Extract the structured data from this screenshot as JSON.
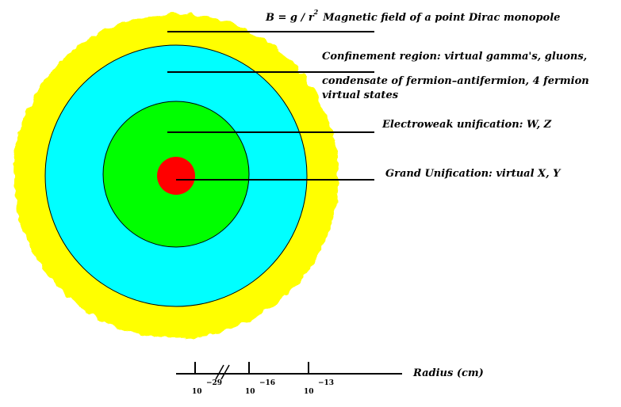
{
  "regions": [
    {
      "key": "outer",
      "color": "#ffff00"
    },
    {
      "key": "confinement",
      "color": "#00ffff"
    },
    {
      "key": "electroweak",
      "color": "#00ff00"
    },
    {
      "key": "grand",
      "color": "#ff0000"
    }
  ],
  "labels": {
    "monopole_formula": "B = g / r",
    "monopole_exponent": "2",
    "monopole_text": "Magnetic field of a point Dirac monopole",
    "confinement_line1": "Confinement region: virtual gamma's, gluons,",
    "confinement_line2": "condensate of fermion–antifermion, 4 fermion",
    "confinement_line3": "virtual states",
    "electroweak": "Electroweak unification: W, Z",
    "grand": "Grand Unification: virtual X, Y"
  },
  "axis": {
    "label": "Radius (cm)",
    "ticks": [
      {
        "base": "10",
        "exponent": "−29"
      },
      {
        "base": "10",
        "exponent": "−16"
      },
      {
        "base": "10",
        "exponent": "−13"
      }
    ]
  }
}
